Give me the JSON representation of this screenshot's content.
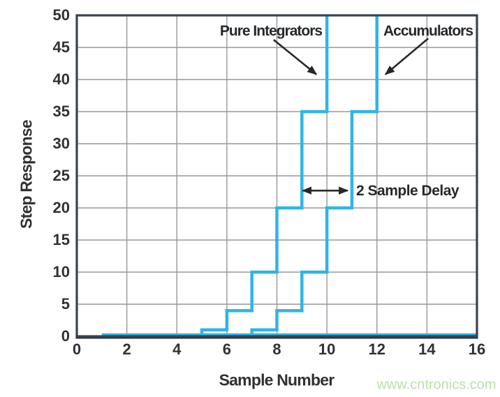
{
  "watermark": {
    "text": "www.cntronics.com"
  },
  "colors": {
    "curve": "#2eb5e8",
    "frame": "#39424c",
    "bottom_axis": "#2b3440",
    "grid": "#979797",
    "tick_text": "#2f3133",
    "annotation": "#26282a",
    "watermark": "#b7e2a8"
  },
  "chart_data": {
    "type": "line",
    "line_style": "step-post",
    "title": "",
    "xlabel": "Sample Number",
    "ylabel": "Step Response",
    "xlim": [
      0,
      16
    ],
    "ylim": [
      0,
      50
    ],
    "xticks": [
      0,
      2,
      4,
      6,
      8,
      10,
      12,
      14,
      16
    ],
    "yticks": [
      0,
      5,
      10,
      15,
      20,
      25,
      30,
      35,
      40,
      45,
      50
    ],
    "grid": true,
    "legend_position": "none",
    "series": [
      {
        "name": "Pure Integrators",
        "step_points": [
          [
            5,
            1
          ],
          [
            6,
            4
          ],
          [
            7,
            10
          ],
          [
            8,
            20
          ],
          [
            9,
            35
          ],
          [
            10,
            56
          ]
        ]
      },
      {
        "name": "Accumulators",
        "step_points": [
          [
            7,
            1
          ],
          [
            8,
            4
          ],
          [
            9,
            10
          ],
          [
            10,
            20
          ],
          [
            11,
            35
          ],
          [
            12,
            56
          ]
        ]
      }
    ],
    "baseline": {
      "y": 0,
      "x_start": 1,
      "x_end": 16
    },
    "annotations": {
      "delay": {
        "label": "2 Sample Delay",
        "arrow_x1": 9,
        "arrow_x2": 11,
        "arrow_y": 22.7
      },
      "series_arrows": [
        {
          "name": "pure-integrators-arrow",
          "from": [
            7.87,
            46.2
          ],
          "to": [
            9.58,
            40.8
          ]
        },
        {
          "name": "accumulators-arrow",
          "from": [
            14.05,
            46.4
          ],
          "to": [
            12.34,
            40.8
          ]
        }
      ]
    }
  }
}
